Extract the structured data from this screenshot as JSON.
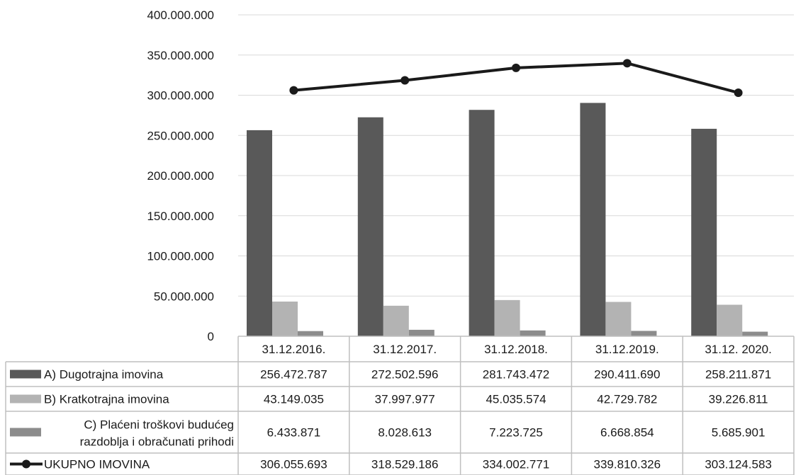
{
  "chart_data": {
    "type": "bar",
    "categories": [
      "31.12.2016.",
      "31.12.2017.",
      "31.12.2018.",
      "31.12.2019.",
      "31.12. 2020."
    ],
    "ylim": [
      0,
      400000000
    ],
    "ytick_labels": [
      "0",
      "50.000.000",
      "100.000.000",
      "150.000.000",
      "200.000.000",
      "250.000.000",
      "300.000.000",
      "350.000.000",
      "400.000.000"
    ],
    "ytick_values": [
      0,
      50000000,
      100000000,
      150000000,
      200000000,
      250000000,
      300000000,
      350000000,
      400000000
    ],
    "grid": true,
    "legend_placement": "data-table",
    "series": [
      {
        "name": "A) Dugotrajna imovina",
        "kind": "bar",
        "color": "#595959",
        "values": [
          256472787,
          272502596,
          281743472,
          290411690,
          258211871
        ],
        "labels": [
          "256.472.787",
          "272.502.596",
          "281.743.472",
          "290.411.690",
          "258.211.871"
        ]
      },
      {
        "name": "B) Kratkotrajna imovina",
        "kind": "bar",
        "color": "#b3b3b3",
        "values": [
          43149035,
          37997977,
          45035574,
          42729782,
          39226811
        ],
        "labels": [
          "43.149.035",
          "37.997.977",
          "45.035.574",
          "42.729.782",
          "39.226.811"
        ]
      },
      {
        "name_lines": [
          "C) Plaćeni troškovi budućeg",
          "razdoblja i obračunati prihodi"
        ],
        "kind": "bar",
        "color": "#8c8c8c",
        "values": [
          6433871,
          8028613,
          7223725,
          6668854,
          5685901
        ],
        "labels": [
          "6.433.871",
          "8.028.613",
          "7.223.725",
          "6.668.854",
          "5.685.901"
        ]
      },
      {
        "name": "UKUPNO IMOVINA",
        "kind": "line",
        "color": "#1a1a1a",
        "values": [
          306055693,
          318529186,
          334002771,
          339810326,
          303124583
        ],
        "labels": [
          "306.055.693",
          "318.529.186",
          "334.002.771",
          "339.810.326",
          "303.124.583"
        ]
      }
    ]
  }
}
